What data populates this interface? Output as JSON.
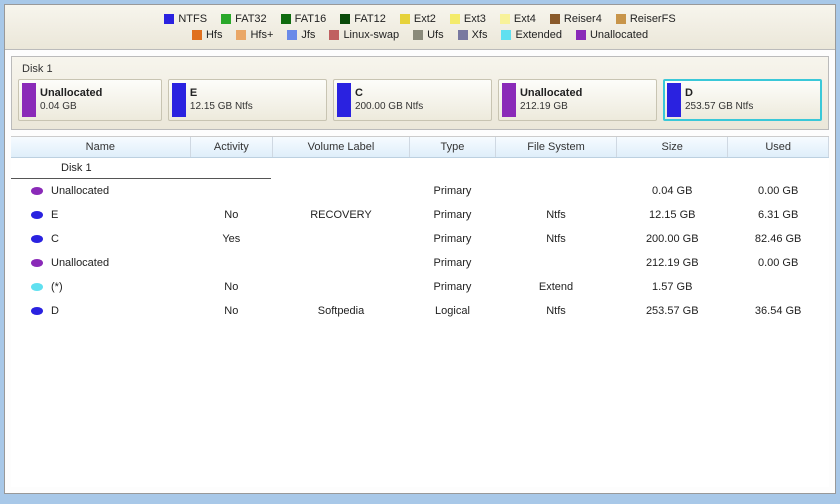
{
  "colors": {
    "ntfs": "#2a22e0",
    "fat32": "#2aa82a",
    "fat16": "#0f6b0f",
    "fat12": "#0a4a0a",
    "ext2": "#e6d23a",
    "ext3": "#f4eb6a",
    "ext4": "#f8f29a",
    "reiser4": "#8a5a2a",
    "reiserfs": "#c8954a",
    "hfs": "#e0701e",
    "hfsplus": "#eaa766",
    "jfs": "#6a8ae8",
    "linuxswap": "#c06060",
    "ufs": "#8a8a7a",
    "xfs": "#7878a0",
    "extended": "#60e0f0",
    "unallocated": "#8a2ab8"
  },
  "legend": [
    [
      {
        "label": "NTFS",
        "color_key": "ntfs"
      },
      {
        "label": "FAT32",
        "color_key": "fat32"
      },
      {
        "label": "FAT16",
        "color_key": "fat16"
      },
      {
        "label": "FAT12",
        "color_key": "fat12"
      },
      {
        "label": "Ext2",
        "color_key": "ext2"
      },
      {
        "label": "Ext3",
        "color_key": "ext3"
      },
      {
        "label": "Ext4",
        "color_key": "ext4"
      },
      {
        "label": "Reiser4",
        "color_key": "reiser4"
      },
      {
        "label": "ReiserFS",
        "color_key": "reiserfs"
      }
    ],
    [
      {
        "label": "Hfs",
        "color_key": "hfs"
      },
      {
        "label": "Hfs+",
        "color_key": "hfsplus"
      },
      {
        "label": "Jfs",
        "color_key": "jfs"
      },
      {
        "label": "Linux-swap",
        "color_key": "linuxswap"
      },
      {
        "label": "Ufs",
        "color_key": "ufs"
      },
      {
        "label": "Xfs",
        "color_key": "xfs"
      },
      {
        "label": "Extended",
        "color_key": "extended"
      },
      {
        "label": "Unallocated",
        "color_key": "unallocated"
      }
    ]
  ],
  "disk": {
    "label": "Disk 1",
    "blocks": [
      {
        "title": "Unallocated",
        "sub": "0.04 GB",
        "color_key": "unallocated",
        "flex": 0.9,
        "selected": false
      },
      {
        "title": "E",
        "sub": "12.15 GB Ntfs",
        "color_key": "ntfs",
        "flex": 1.0,
        "selected": false
      },
      {
        "title": "C",
        "sub": "200.00 GB Ntfs",
        "color_key": "ntfs",
        "flex": 1.0,
        "selected": false
      },
      {
        "title": "Unallocated",
        "sub": "212.19 GB",
        "color_key": "unallocated",
        "flex": 1.0,
        "selected": false
      },
      {
        "title": "D",
        "sub": "253.57 GB Ntfs",
        "color_key": "ntfs",
        "flex": 1.0,
        "selected": true
      }
    ]
  },
  "table": {
    "columns": [
      "Name",
      "Activity",
      "Volume Label",
      "Type",
      "File System",
      "Size",
      "Used"
    ],
    "disk_row": "Disk 1",
    "rows": [
      {
        "color_key": "unallocated",
        "name": "Unallocated",
        "activity": "",
        "label": "",
        "type": "Primary",
        "fs": "",
        "size": "0.04 GB",
        "used": "0.00 GB"
      },
      {
        "color_key": "ntfs",
        "name": "E",
        "activity": "No",
        "label": "RECOVERY",
        "type": "Primary",
        "fs": "Ntfs",
        "size": "12.15 GB",
        "used": "6.31 GB"
      },
      {
        "color_key": "ntfs",
        "name": "C",
        "activity": "Yes",
        "label": "",
        "type": "Primary",
        "fs": "Ntfs",
        "size": "200.00 GB",
        "used": "82.46 GB"
      },
      {
        "color_key": "unallocated",
        "name": "Unallocated",
        "activity": "",
        "label": "",
        "type": "Primary",
        "fs": "",
        "size": "212.19 GB",
        "used": "0.00 GB"
      },
      {
        "color_key": "extended",
        "name": "(*)",
        "activity": "No",
        "label": "",
        "type": "Primary",
        "fs": "Extend",
        "size": "1.57 GB",
        "used": ""
      },
      {
        "color_key": "ntfs",
        "name": "D",
        "activity": "No",
        "label": "Softpedia",
        "type": "Logical",
        "fs": "Ntfs",
        "size": "253.57 GB",
        "used": "36.54 GB"
      }
    ]
  }
}
